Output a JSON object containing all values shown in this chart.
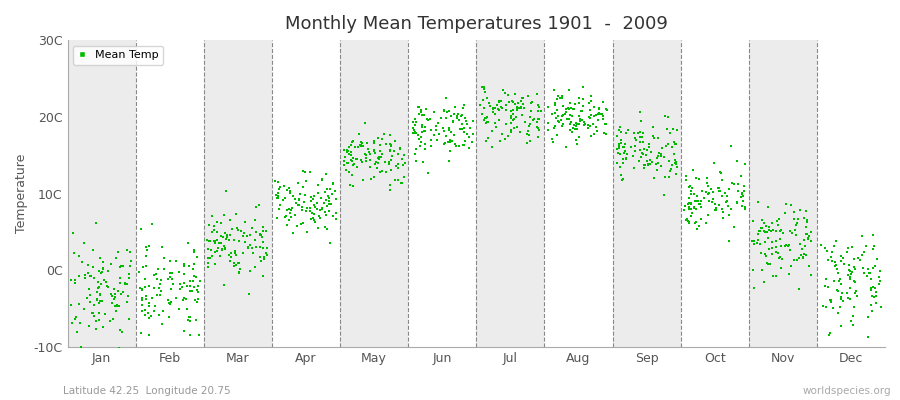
{
  "title": "Monthly Mean Temperatures 1901  -  2009",
  "ylabel": "Temperature",
  "xlabel_bottom_left": "Latitude 42.25  Longitude 20.75",
  "xlabel_bottom_right": "worldspecies.org",
  "legend_label": "Mean Temp",
  "dot_color": "#00bb00",
  "figure_bg": "#ffffff",
  "plot_bg_white": "#ffffff",
  "plot_bg_gray": "#ececec",
  "ylim": [
    -10,
    30
  ],
  "yticks": [
    -10,
    0,
    10,
    20,
    30
  ],
  "ytick_labels": [
    "-10C",
    "0C",
    "10C",
    "20C",
    "30C"
  ],
  "months": [
    "Jan",
    "Feb",
    "Mar",
    "Apr",
    "May",
    "Jun",
    "Jul",
    "Aug",
    "Sep",
    "Oct",
    "Nov",
    "Dec"
  ],
  "month_mean_temps": [
    -2.5,
    -2.0,
    3.5,
    9.0,
    14.5,
    18.5,
    20.5,
    20.0,
    15.5,
    9.5,
    3.5,
    -1.5
  ],
  "month_std_temps": [
    3.2,
    2.8,
    2.3,
    1.8,
    1.8,
    1.8,
    1.8,
    1.7,
    1.8,
    1.9,
    2.3,
    2.8
  ],
  "n_years": 109,
  "seed": 7,
  "marker_size": 3,
  "title_fontsize": 13,
  "axis_label_fontsize": 9,
  "tick_fontsize": 9,
  "legend_fontsize": 8
}
